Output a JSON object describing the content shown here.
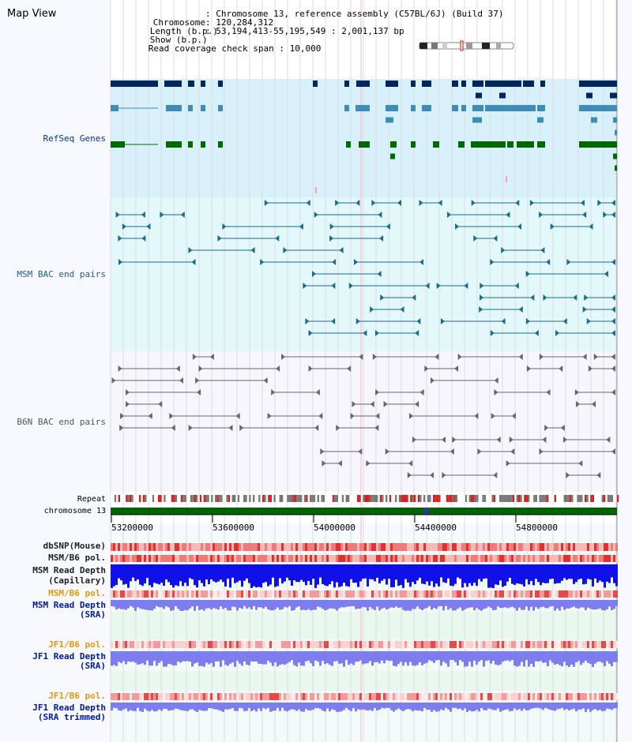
{
  "view": {
    "title": "Map View"
  },
  "info": {
    "rows": [
      {
        "key": "Chromosome",
        "value": "Chromosome 13, reference assembly (C57BL/6J) (Build 37)"
      },
      {
        "key": "Length (b.p.)",
        "value": "120,284,312"
      },
      {
        "key": "Show (b.p.)",
        "value": "53,194,413-55,195,549 : 2,001,137 bp"
      },
      {
        "key": "Read coverage check span",
        "value": "10,000"
      }
    ]
  },
  "tracks": {
    "refseq": "RefSeq Genes",
    "msm_bac": "MSM BAC end pairs",
    "b6n_bac": "B6N BAC end pairs",
    "repeat": "Repeat",
    "chromosome": "chromosome 13",
    "dbsnp": "dbSNP(Mouse)",
    "msm_b6_pol_1": "MSM/B6 pol.",
    "msm_read_depth_cap": "MSM Read Depth",
    "msm_read_depth_cap_sub": "(Capillary)",
    "msm_b6_pol_2": "MSM/B6 pol.",
    "msm_read_depth_sra": "MSM Read Depth",
    "msm_read_depth_sra_sub": "(SRA)",
    "jf1_b6_pol_1": "JF1/B6 pol.",
    "jf1_read_depth_sra": "JF1 Read Depth",
    "jf1_read_depth_sra_sub": "(SRA)",
    "jf1_b6_pol_2": "JF1/B6 pol.",
    "jf1_read_depth_trim": "JF1 Read Depth",
    "jf1_read_depth_trim_sub": "(SRA trimmed)"
  },
  "axis": {
    "ticks": [
      "53200000",
      "53600000",
      "54000000",
      "54400000",
      "54800000"
    ]
  },
  "colors": {
    "refseq_dark": "#00265e",
    "refseq_mid": "#3d8db8",
    "refseq_green": "#006a00",
    "msm_line": "#1b6a8f",
    "b6n_line": "#666666",
    "chromosome": "#006400",
    "depth_blue": "#1010e8",
    "depth_light": "#7d7df0"
  }
}
